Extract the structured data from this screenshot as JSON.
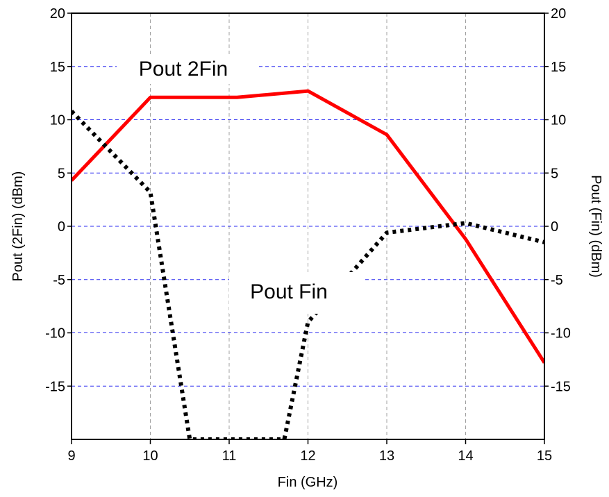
{
  "chart_data": {
    "type": "line",
    "title": "",
    "xlabel": "Fin (GHz)",
    "ylabel_left": "Pout (2Fin) (dBm)",
    "ylabel_right": "Pout (Fin) (dBm)",
    "xlim": [
      9,
      15
    ],
    "ylim": [
      -20,
      20
    ],
    "x_ticks": [
      9,
      10,
      11,
      12,
      13,
      14,
      15
    ],
    "y_ticks": [
      -15,
      -10,
      -5,
      0,
      5,
      10,
      15,
      20
    ],
    "grid": {
      "x": true,
      "y": true,
      "x_color": "#a0a0a0",
      "y_color": "#2a2af0"
    },
    "series": [
      {
        "name": "Pout 2Fin",
        "style": "solid",
        "color": "#ff0000",
        "x": [
          9,
          10,
          11,
          11.1,
          12,
          13,
          14,
          15
        ],
        "y": [
          4.3,
          12.1,
          12.1,
          12.1,
          12.7,
          8.6,
          -1.2,
          -12.8
        ]
      },
      {
        "name": "Pout Fin",
        "style": "dotted",
        "color": "#000000",
        "x": [
          9,
          10,
          10.5,
          11.7,
          12,
          13,
          14,
          15
        ],
        "y": [
          10.8,
          3.2,
          -20,
          -20,
          -9,
          -0.6,
          0.3,
          -1.5
        ]
      }
    ],
    "annotations": [
      {
        "text": "Pout 2Fin",
        "x": 11.3,
        "y": 15
      },
      {
        "text": "Pout Fin",
        "x": 12.0,
        "y": -6
      }
    ]
  }
}
